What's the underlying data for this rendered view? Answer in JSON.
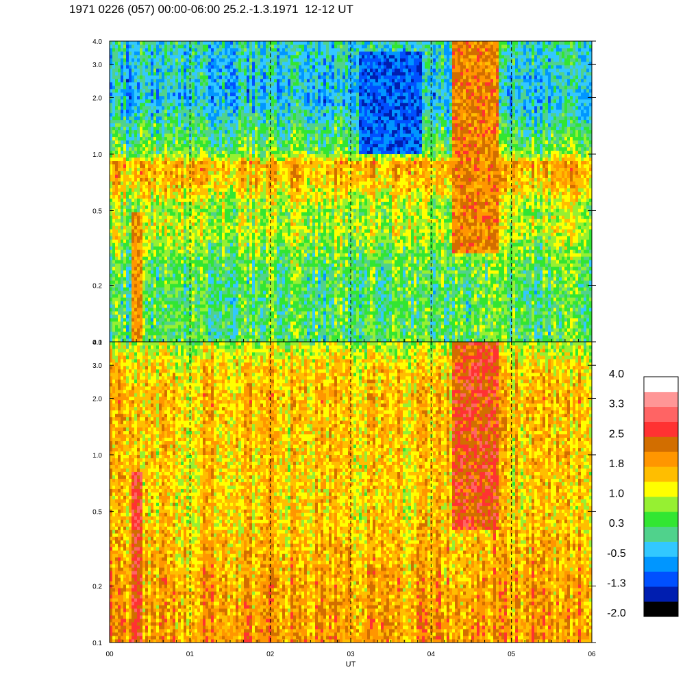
{
  "title": "1971 0226 (057) 00:00-06:00 25.2.-1.3.1971  12-12 UT",
  "chart_data": {
    "type": "heatmap",
    "title": "1971 0226 (057) 00:00-06:00 25.2.-1.3.1971  12-12 UT",
    "xlabel": "UT",
    "x_ticks": [
      "00",
      "01",
      "02",
      "03",
      "04",
      "05",
      "06"
    ],
    "xlim": [
      0,
      6
    ],
    "y_scale": "log",
    "ylim": [
      0.1,
      4.0
    ],
    "panels": [
      {
        "name": "upper",
        "y_ticks": [
          "0.1",
          "0.2",
          "0.5",
          "1.0",
          "2.0",
          "3.0",
          "4.0"
        ],
        "y_tick_values": [
          0.1,
          0.2,
          0.5,
          1.0,
          2.0,
          3.0,
          4.0
        ],
        "profile": [
          {
            "freq": 0.1,
            "value": 0.35
          },
          {
            "freq": 0.2,
            "value": 0.3
          },
          {
            "freq": 0.3,
            "value": 0.55
          },
          {
            "freq": 0.4,
            "value": 1.0
          },
          {
            "freq": 0.5,
            "value": 0.7
          },
          {
            "freq": 0.7,
            "value": 1.5
          },
          {
            "freq": 0.9,
            "value": 1.7
          },
          {
            "freq": 1.0,
            "value": 0.6
          },
          {
            "freq": 2.0,
            "value": -0.4
          },
          {
            "freq": 4.0,
            "value": -0.1
          }
        ],
        "events": [
          {
            "t0": 0.28,
            "t1": 0.4,
            "fmax": 0.5,
            "value": 2.0
          },
          {
            "t0": 4.25,
            "t1": 4.85,
            "fmin": 0.3,
            "fmax": 4.0,
            "value": 2.1
          },
          {
            "t0": 3.1,
            "t1": 3.9,
            "fmin": 1.0,
            "fmax": 3.5,
            "value": -1.0
          }
        ]
      },
      {
        "name": "lower",
        "y_ticks": [
          "0.1",
          "0.2",
          "0.5",
          "1.0",
          "2.0",
          "3.0",
          "4.0"
        ],
        "y_tick_values": [
          0.1,
          0.2,
          0.5,
          1.0,
          2.0,
          3.0,
          4.0
        ],
        "profile": [
          {
            "freq": 0.1,
            "value": 1.9
          },
          {
            "freq": 0.2,
            "value": 1.8
          },
          {
            "freq": 0.5,
            "value": 1.45
          },
          {
            "freq": 1.0,
            "value": 1.5
          },
          {
            "freq": 2.0,
            "value": 1.6
          },
          {
            "freq": 3.0,
            "value": 1.4
          },
          {
            "freq": 4.0,
            "value": 0.8
          }
        ],
        "events": [
          {
            "t0": 0.28,
            "t1": 0.4,
            "fmax": 0.8,
            "value": 2.7
          },
          {
            "t0": 4.25,
            "t1": 4.85,
            "fmin": 0.4,
            "fmax": 4.0,
            "value": 2.5
          }
        ]
      }
    ],
    "colorbar": {
      "labels": [
        "4.0",
        "3.3",
        "2.5",
        "1.8",
        "1.0",
        "0.3",
        "-0.5",
        "-1.3",
        "-2.0"
      ],
      "range": [
        -2.0,
        4.0
      ],
      "colors": [
        "#000000",
        "#001eb0",
        "#0050ff",
        "#0096ff",
        "#32c8ff",
        "#50d28c",
        "#32e632",
        "#96f032",
        "#ffff00",
        "#ffbe00",
        "#ff9600",
        "#d26e00",
        "#ff3232",
        "#ff6464",
        "#ff9696",
        "#ffffff"
      ]
    },
    "grid": "vertical dashed lines at each hour"
  }
}
